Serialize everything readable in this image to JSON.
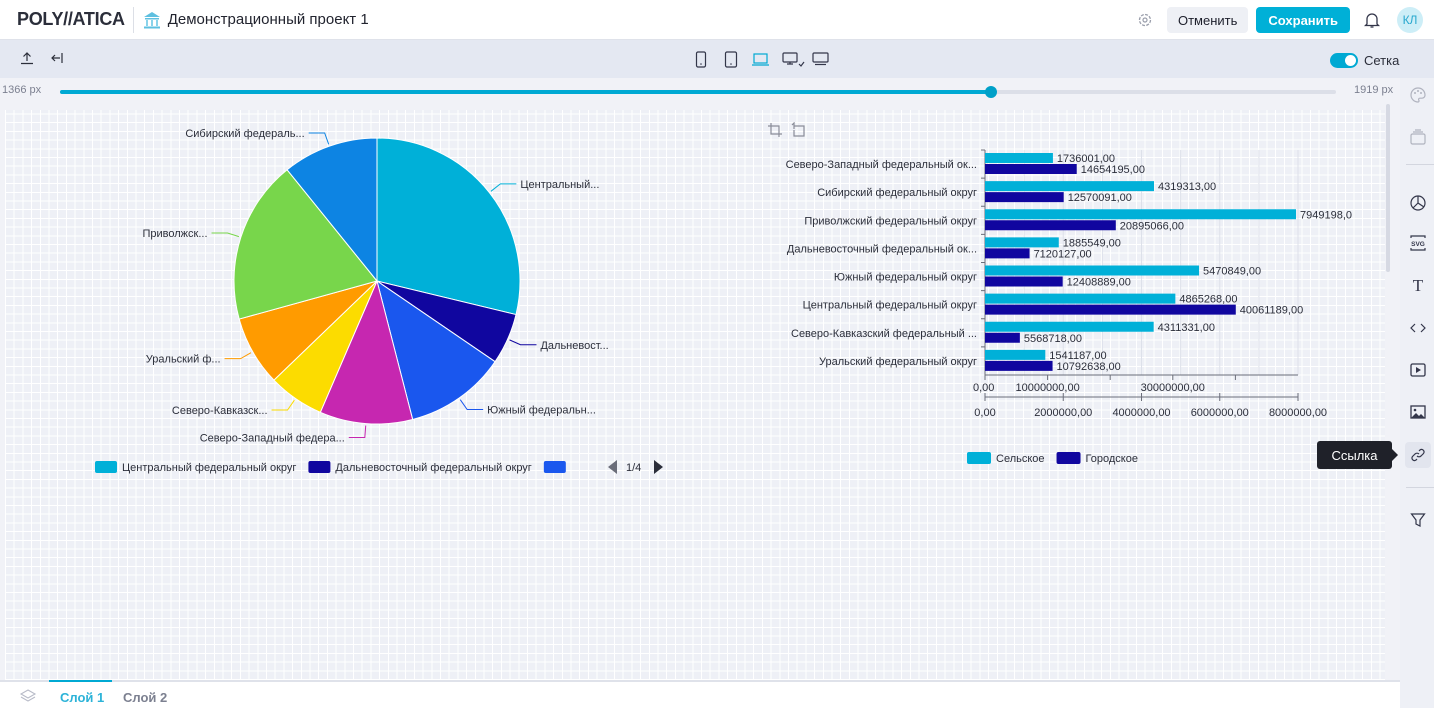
{
  "header": {
    "logo": "POLY//ATICA",
    "project_title": "Демонстрационный проект 1",
    "cancel_label": "Отменить",
    "save_label": "Сохранить",
    "avatar_initials": "КЛ"
  },
  "toolbar": {
    "grid_label": "Сетка",
    "grid_enabled": true,
    "active_device": "laptop"
  },
  "slider": {
    "min_label": "1366 px",
    "max_label": "1919 px",
    "value_fraction": 0.73
  },
  "sidebar": {
    "tooltip": "Ссылка",
    "items": [
      "palette-icon",
      "layers-stack-icon",
      "pie-chart-icon",
      "svg-icon",
      "text-icon",
      "code-icon",
      "video-icon",
      "image-icon",
      "link-icon",
      "filter-icon"
    ]
  },
  "colors": {
    "accent": "#00a9d3",
    "rural": "#00b0d8",
    "urban": "#10069f"
  },
  "pie": {
    "slices": [
      {
        "label": "Центральный...",
        "value": 44926457,
        "color": "#00b0d8"
      },
      {
        "label": "Дальневост...",
        "value": 9005676,
        "color": "#10069f"
      },
      {
        "label": "Южный федеральн...",
        "value": 17879738,
        "color": "#1a57ee"
      },
      {
        "label": "Северо-Западный федера...",
        "value": 16390196,
        "color": "#c627b0"
      },
      {
        "label": "Северо-Кавказск...",
        "value": 9880049,
        "color": "#fcdc00"
      },
      {
        "label": "Уральский ф...",
        "value": 12333825,
        "color": "#ff9b00"
      },
      {
        "label": "Приволжск...",
        "value": 28844264,
        "color": "#78d64b"
      },
      {
        "label": "Сибирский федераль...",
        "value": 16889404,
        "color": "#0d84e3"
      }
    ],
    "legend": [
      {
        "label": "Центральный федеральный округ",
        "color": "#00b0d8"
      },
      {
        "label": "Дальневосточный федеральный округ",
        "color": "#10069f"
      },
      {
        "label": "",
        "color": "#1a57ee"
      }
    ],
    "legend_page": "1/4"
  },
  "chart_data": {
    "type": "bar",
    "orientation": "horizontal",
    "categories": [
      "Северо-Западный федеральный ок...",
      "Сибирский федеральный округ",
      "Приволжский федеральный округ",
      "Дальневосточный федеральный ок...",
      "Южный федеральный округ",
      "Центральный федеральный округ",
      "Северо-Кавказский федеральный ...",
      "Уральский федеральный округ"
    ],
    "series": [
      {
        "name": "Сельское",
        "values": [
          1736001,
          4319313,
          7949198,
          1885549,
          5470849,
          4865268,
          4311331,
          1541187
        ],
        "labels": [
          "1736001,00",
          "4319313,00",
          "7949198,0",
          "1885549,00",
          "5470849,00",
          "4865268,00",
          "4311331,00",
          "1541187,00"
        ],
        "axis": "bottom",
        "xlim": [
          0,
          8000000
        ]
      },
      {
        "name": "Городское",
        "values": [
          14654195,
          12570091,
          20895066,
          7120127,
          12408889,
          40061189,
          5568718,
          10792638
        ],
        "labels": [
          "14654195,00",
          "12570091,00",
          "20895066,00",
          "7120127,00",
          "12408889,00",
          "40061189,00",
          "5568718,00",
          "10792638,00"
        ],
        "axis": "top",
        "xlim": [
          0,
          50000000
        ]
      }
    ],
    "axis_rural_ticks": [
      "0,00",
      "2000000,00",
      "4000000,00",
      "6000000,00",
      "8000000,00"
    ],
    "axis_urban_ticks": [
      "0,00",
      "10000000,00",
      "",
      "30000000,00",
      ""
    ],
    "legend_position": "bottom-left",
    "grid": true
  },
  "bottom": {
    "layers": [
      "Слой 1",
      "Слой 2"
    ],
    "active_layer": 0
  }
}
